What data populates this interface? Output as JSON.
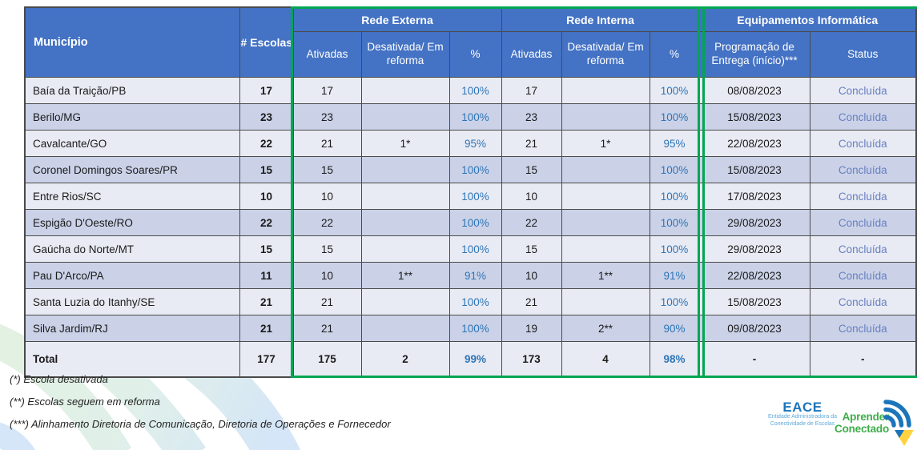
{
  "table": {
    "header": {
      "municipio": "Município",
      "escolas": "# Escolas",
      "groups": {
        "externa": "Rede Externa",
        "interna": "Rede Interna",
        "equipamentos": "Equipamentos Informática"
      },
      "sub": {
        "ativadas": "Ativadas",
        "desativada": "Desativada/ Em reforma",
        "pct": "%",
        "programacao": "Programação de Entrega (início)***",
        "status": "Status"
      }
    },
    "columns": [
      "Município",
      "# Escolas",
      "Ativadas",
      "Desativada/Em reforma",
      "%",
      "Ativadas",
      "Desativada/Em reforma",
      "%",
      "Programação de Entrega (início)***",
      "Status"
    ],
    "rows": [
      [
        "Baía da Traição/PB",
        "17",
        "17",
        "",
        "100%",
        "17",
        "",
        "100%",
        "08/08/2023",
        "Concluída"
      ],
      [
        "Berilo/MG",
        "23",
        "23",
        "",
        "100%",
        "23",
        "",
        "100%",
        "15/08/2023",
        "Concluída"
      ],
      [
        "Cavalcante/GO",
        "22",
        "21",
        "1*",
        "95%",
        "21",
        "1*",
        "95%",
        "22/08/2023",
        "Concluída"
      ],
      [
        "Coronel Domingos Soares/PR",
        "15",
        "15",
        "",
        "100%",
        "15",
        "",
        "100%",
        "15/08/2023",
        "Concluída"
      ],
      [
        "Entre Rios/SC",
        "10",
        "10",
        "",
        "100%",
        "10",
        "",
        "100%",
        "17/08/2023",
        "Concluída"
      ],
      [
        "Espigão D'Oeste/RO",
        "22",
        "22",
        "",
        "100%",
        "22",
        "",
        "100%",
        "29/08/2023",
        "Concluída"
      ],
      [
        "Gaúcha do Norte/MT",
        "15",
        "15",
        "",
        "100%",
        "15",
        "",
        "100%",
        "29/08/2023",
        "Concluída"
      ],
      [
        "Pau D'Arco/PA",
        "11",
        "10",
        "1**",
        "91%",
        "10",
        "1**",
        "91%",
        "22/08/2023",
        "Concluída"
      ],
      [
        "Santa Luzia do Itanhy/SE",
        "21",
        "21",
        "",
        "100%",
        "21",
        "",
        "100%",
        "15/08/2023",
        "Concluída"
      ],
      [
        "Silva Jardim/RJ",
        "21",
        "21",
        "",
        "100%",
        "19",
        "2**",
        "90%",
        "09/08/2023",
        "Concluída"
      ]
    ],
    "total_row": [
      "Total",
      "177",
      "175",
      "2",
      "99%",
      "173",
      "4",
      "98%",
      "-",
      "-"
    ],
    "colors": {
      "header_blue": "#4472C4",
      "row_light": "#E9EBF4",
      "row_dark": "#CBD2E8",
      "highlight_green": "#00A651",
      "percent_blue": "#2E75B6",
      "status_blue": "#667FC0"
    }
  },
  "footnotes": [
    "(*) Escola desativada",
    "(**) Escolas seguem em reforma",
    "(***) Alinhamento Diretoria de Comunicação, Diretoria de Operações e Fornecedor"
  ],
  "logos": {
    "eace": {
      "name": "EACE",
      "subtitle_line1": "Entidade Administradora da",
      "subtitle_line2": "Conectividade de Escolas"
    },
    "aprender": {
      "line1": "Aprender",
      "line2": "Conectado"
    }
  }
}
